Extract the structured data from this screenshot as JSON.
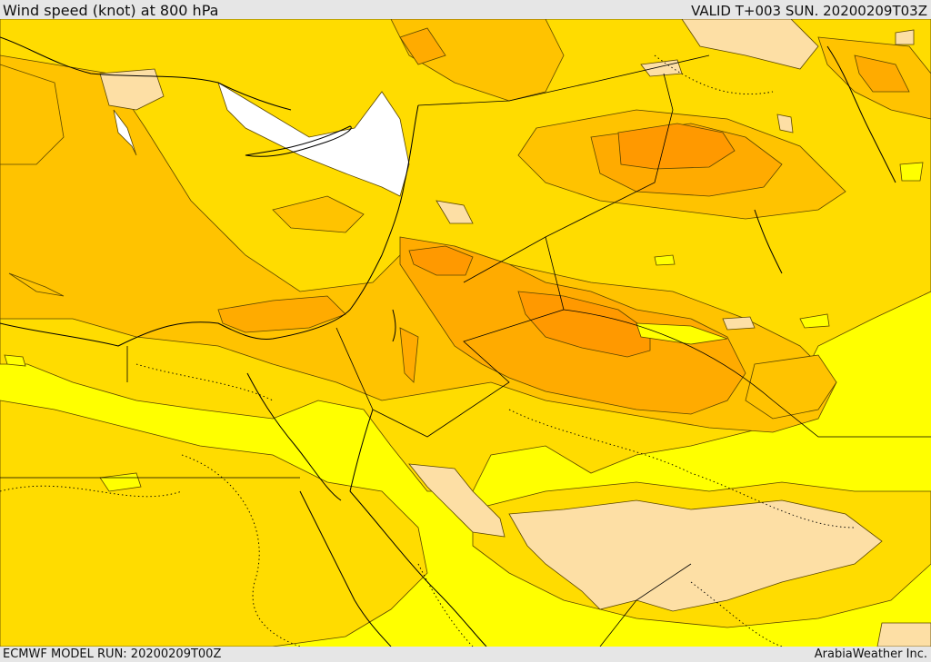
{
  "header": {
    "title": "Wind speed (knot) at 800 hPa",
    "valid": "VALID T+003 SUN. 20200209T03Z"
  },
  "footer": {
    "model_run": "ECMWF MODEL RUN: 20200209T00Z",
    "credit": "ArabiaWeather Inc."
  },
  "map": {
    "colors": {
      "band_0": "#ffffff",
      "band_1": "#fddfa5",
      "band_2": "#ffff00",
      "band_3": "#ffdc00",
      "band_4": "#ffc300",
      "band_5": "#ffab00",
      "band_6": "#ff9900",
      "contour": "#5a4600",
      "border": "#000000"
    }
  }
}
